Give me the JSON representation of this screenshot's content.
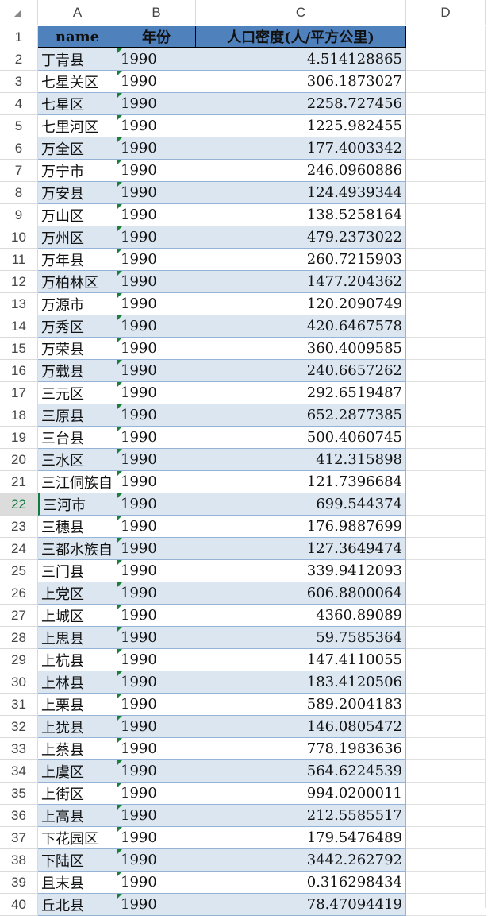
{
  "columns": [
    "A",
    "B",
    "C",
    "D"
  ],
  "header": {
    "name": "name",
    "year": "年份",
    "density": "人口密度(人/平方公里)"
  },
  "selected_row": 22,
  "rows": [
    [
      "丁青县",
      "1990",
      "4.514128865"
    ],
    [
      "七星关区",
      "1990",
      "306.1873027"
    ],
    [
      "七星区",
      "1990",
      "2258.727456"
    ],
    [
      "七里河区",
      "1990",
      "1225.982455"
    ],
    [
      "万全区",
      "1990",
      "177.4003342"
    ],
    [
      "万宁市",
      "1990",
      "246.0960886"
    ],
    [
      "万安县",
      "1990",
      "124.4939344"
    ],
    [
      "万山区",
      "1990",
      "138.5258164"
    ],
    [
      "万州区",
      "1990",
      "479.2373022"
    ],
    [
      "万年县",
      "1990",
      "260.7215903"
    ],
    [
      "万柏林区",
      "1990",
      "1477.204362"
    ],
    [
      "万源市",
      "1990",
      "120.2090749"
    ],
    [
      "万秀区",
      "1990",
      "420.6467578"
    ],
    [
      "万荣县",
      "1990",
      "360.4009585"
    ],
    [
      "万载县",
      "1990",
      "240.6657262"
    ],
    [
      "三元区",
      "1990",
      "292.6519487"
    ],
    [
      "三原县",
      "1990",
      "652.2877385"
    ],
    [
      "三台县",
      "1990",
      "500.4060745"
    ],
    [
      "三水区",
      "1990",
      "412.315898"
    ],
    [
      "三江侗族自",
      "1990",
      "121.7396684"
    ],
    [
      "三河市",
      "1990",
      "699.544374"
    ],
    [
      "三穗县",
      "1990",
      "176.9887699"
    ],
    [
      "三都水族自",
      "1990",
      "127.3649474"
    ],
    [
      "三门县",
      "1990",
      "339.9412093"
    ],
    [
      "上党区",
      "1990",
      "606.8800064"
    ],
    [
      "上城区",
      "1990",
      "4360.89089"
    ],
    [
      "上思县",
      "1990",
      "59.7585364"
    ],
    [
      "上杭县",
      "1990",
      "147.4110055"
    ],
    [
      "上林县",
      "1990",
      "183.4120506"
    ],
    [
      "上栗县",
      "1990",
      "589.2004183"
    ],
    [
      "上犹县",
      "1990",
      "146.0805472"
    ],
    [
      "上蔡县",
      "1990",
      "778.1983636"
    ],
    [
      "上虞区",
      "1990",
      "564.6224539"
    ],
    [
      "上街区",
      "1990",
      "994.0200011"
    ],
    [
      "上高县",
      "1990",
      "212.5585517"
    ],
    [
      "下花园区",
      "1990",
      "179.5476489"
    ],
    [
      "下陆区",
      "1990",
      "3442.262792"
    ],
    [
      "且末县",
      "1990",
      "0.316298434"
    ],
    [
      "丘北县",
      "1990",
      "78.47094419"
    ]
  ]
}
